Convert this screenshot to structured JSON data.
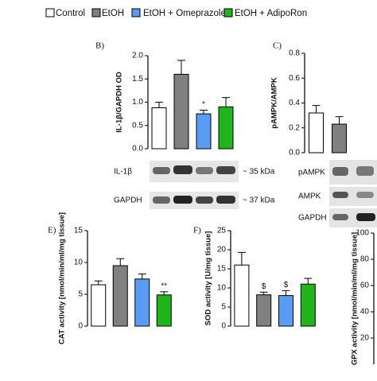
{
  "legend": [
    {
      "label": "Control",
      "color": "#ffffff"
    },
    {
      "label": "EtOH",
      "color": "#808080"
    },
    {
      "label": "EtOH + Omeprazole",
      "color": "#5b9cf3"
    },
    {
      "label": "EtOH + AdipoRon",
      "color": "#22b41c"
    }
  ],
  "chart_data": [
    {
      "type": "bar",
      "panel": "B)",
      "y_label": "IL-1β/GAPDH OD",
      "values": [
        0.88,
        1.6,
        0.75,
        0.9
      ],
      "errors": [
        0.12,
        0.3,
        0.08,
        0.2
      ],
      "significance": [
        null,
        null,
        "*",
        null
      ],
      "colors": [
        "#ffffff",
        "#808080",
        "#5b9cf3",
        "#22b41c"
      ],
      "ylim": [
        0,
        2
      ],
      "yticks": [
        {
          "value": 0,
          "label": "0.0"
        },
        {
          "value": 0.5,
          "label": "0.5"
        },
        {
          "value": 1,
          "label": "1.0"
        },
        {
          "value": 1.5,
          "label": "1.5"
        },
        {
          "value": 2,
          "label": "2.0"
        }
      ],
      "blots": [
        {
          "label": "IL-1β",
          "size": "~ 35 kDa"
        },
        {
          "label": "GAPDH",
          "size": "~ 37 kDa"
        }
      ]
    },
    {
      "type": "bar",
      "panel": "C)",
      "y_label": "pAMPK/AMPK",
      "values": [
        0.32,
        0.23
      ],
      "errors": [
        0.06,
        0.06
      ],
      "significance": [
        null,
        null
      ],
      "colors": [
        "#ffffff",
        "#808080"
      ],
      "ylim": [
        0,
        0.8
      ],
      "yticks": [
        {
          "value": 0,
          "label": "0.0"
        },
        {
          "value": 0.2,
          "label": "0.2"
        },
        {
          "value": 0.4,
          "label": "0.4"
        },
        {
          "value": 0.6,
          "label": "0.6"
        },
        {
          "value": 0.8,
          "label": "0.8"
        }
      ],
      "blots": [
        {
          "label": "pAMPK"
        },
        {
          "label": "AMPK"
        },
        {
          "label": "GAPDH"
        }
      ]
    },
    {
      "type": "bar",
      "panel": "E)",
      "y_label": "CAT activity [nmol/min/ml/mg tissue]",
      "values": [
        6.5,
        9.5,
        7.4,
        4.9
      ],
      "errors": [
        0.6,
        1.1,
        0.8,
        0.5
      ],
      "significance": [
        null,
        null,
        null,
        "**"
      ],
      "colors": [
        "#ffffff",
        "#808080",
        "#5b9cf3",
        "#22b41c"
      ],
      "ylim": [
        0,
        15
      ],
      "yticks": [
        0,
        5,
        10,
        15
      ]
    },
    {
      "type": "bar",
      "panel": "F)",
      "y_label": "SOD activity [U/mg tissue]",
      "values": [
        16,
        8.2,
        8,
        11
      ],
      "errors": [
        3.3,
        0.7,
        1.3,
        1.5
      ],
      "significance": [
        null,
        "$",
        "$",
        null
      ],
      "colors": [
        "#ffffff",
        "#808080",
        "#5b9cf3",
        "#22b41c"
      ],
      "ylim": [
        0,
        25
      ],
      "yticks": [
        0,
        5,
        10,
        15,
        20,
        25
      ]
    },
    {
      "type": "bar",
      "y_label": "GPX activity [nmol/min/ml/mg tissue]",
      "values": [],
      "errors": [],
      "significance": [],
      "colors": [],
      "ylim": [
        0,
        100
      ],
      "yticks": [
        20,
        40,
        60,
        80,
        100
      ]
    }
  ]
}
